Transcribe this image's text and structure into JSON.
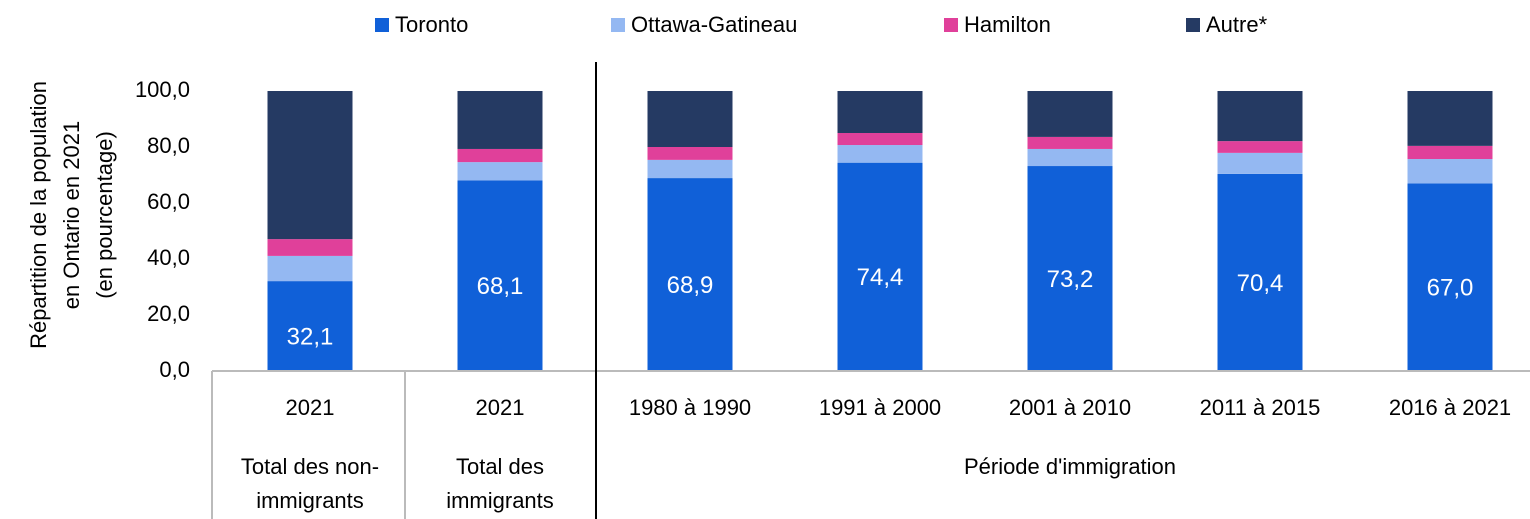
{
  "chart_data": {
    "type": "stacked_bar",
    "categories": [
      "2021",
      "2021",
      "1980 à 1990",
      "1991 à 2000",
      "2001 à 2010",
      "2011 à 2015",
      "2016 à 2021"
    ],
    "groups": [
      [
        "Total des non-",
        "immigrants"
      ],
      [
        "Total des",
        "immigrants"
      ],
      [
        "Période d'immigration"
      ]
    ],
    "ylabel": [
      "Répartition de la population",
      "en Ontario en 2021",
      "(en pourcentage)"
    ],
    "series": [
      {
        "name": "Toronto",
        "color": "#1060d8",
        "values": [
          32.1,
          68.1,
          68.9,
          74.4,
          73.2,
          70.4,
          67.0
        ],
        "value_labels": [
          "32,1",
          "68,1",
          "68,9",
          "74,4",
          "73,2",
          "70,4",
          "67,0"
        ]
      },
      {
        "name": "Ottawa-Gatineau",
        "color": "#94b8f2",
        "values": [
          9.0,
          6.5,
          6.5,
          6.3,
          6.1,
          7.5,
          8.7
        ]
      },
      {
        "name": "Hamilton",
        "color": "#e0409a",
        "values": [
          6.0,
          4.7,
          4.6,
          4.3,
          4.3,
          4.2,
          4.7
        ]
      },
      {
        "name": "Autre*",
        "color": "#253a63",
        "values": [
          52.9,
          20.7,
          20.0,
          15.0,
          16.4,
          17.9,
          19.6
        ]
      }
    ],
    "ylim": [
      0,
      100
    ],
    "yticks": [
      {
        "value": 0,
        "label": "0,0"
      },
      {
        "value": 20,
        "label": "20,0"
      },
      {
        "value": 40,
        "label": "40,0"
      },
      {
        "value": 60,
        "label": "60,0"
      },
      {
        "value": 80,
        "label": "80,0"
      },
      {
        "value": 100,
        "label": "100,0"
      }
    ],
    "legend": "top"
  }
}
